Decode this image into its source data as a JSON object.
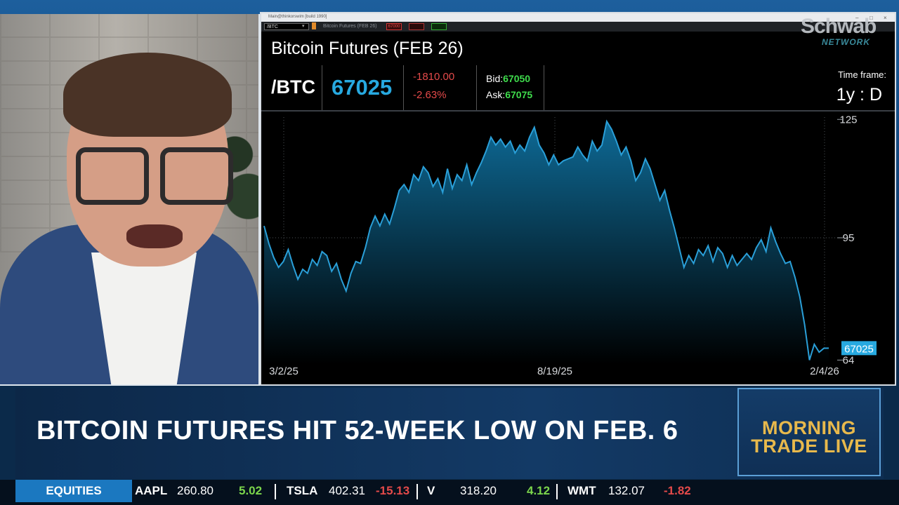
{
  "platform": {
    "window_title": "Main@thinkorswim [build 1990]",
    "toolbar_symbol": "/BTC",
    "toolbar_name": "Bitcoin Futures (FEB 26)",
    "badges": [
      "67000",
      "",
      ""
    ]
  },
  "branding": {
    "logo_text": "Schwab",
    "logo_sub": "NETWORK"
  },
  "quote": {
    "symbol": "/BTC",
    "last": "67025",
    "net_change": "-1810.00",
    "pct_change": "-2.63%",
    "bid_label": "Bid:",
    "bid": "67050",
    "ask_label": "Ask:",
    "ask": "67075",
    "timeframe_label": "Time frame:",
    "timeframe_value": "1y : D"
  },
  "chart_data": {
    "type": "area",
    "title": "Bitcoin Futures (FEB 26)",
    "xlabel": "",
    "ylabel": "",
    "x_ticks": [
      "3/2/25",
      "8/19/25",
      "2/4/26"
    ],
    "y_ticks": [
      125,
      95,
      64
    ],
    "ylim": [
      63,
      127
    ],
    "grid": true,
    "last_value_label": "67025",
    "colors": {
      "line": "#2a9fd8",
      "fill_top": "#0e5e86",
      "fill_bottom": "#000000",
      "last_tag": "#27a9e0"
    },
    "series": [
      {
        "values": [
          98.0,
          93.5,
          90.0,
          87.5,
          89.0,
          92.0,
          88.0,
          84.5,
          87.0,
          86.0,
          89.5,
          88.0,
          91.5,
          90.5,
          86.5,
          88.5,
          84.5,
          81.5,
          86.0,
          89.0,
          88.5,
          92.5,
          97.5,
          100.5,
          98.0,
          101.0,
          98.5,
          102.5,
          107.0,
          108.5,
          106.5,
          111.0,
          109.5,
          113.0,
          111.5,
          108.0,
          110.0,
          106.5,
          112.5,
          107.5,
          111.0,
          109.5,
          113.5,
          108.5,
          111.5,
          114.0,
          117.0,
          120.5,
          118.5,
          120.0,
          118.0,
          119.5,
          116.5,
          118.5,
          117.0,
          120.5,
          123.0,
          118.5,
          116.5,
          113.5,
          116.0,
          113.5,
          114.5,
          115.0,
          115.5,
          118.0,
          116.0,
          114.5,
          119.5,
          117.0,
          118.5,
          124.5,
          122.5,
          119.5,
          116.0,
          118.0,
          114.5,
          109.5,
          111.5,
          115.0,
          112.5,
          108.5,
          104.5,
          107.0,
          102.0,
          97.5,
          92.5,
          87.5,
          90.5,
          88.5,
          92.0,
          90.5,
          93.0,
          89.0,
          92.5,
          91.0,
          87.5,
          90.5,
          88.0,
          89.5,
          91.0,
          89.5,
          92.5,
          94.5,
          91.5,
          97.5,
          94.0,
          91.0,
          88.5,
          89.0,
          85.0,
          80.0,
          73.0,
          64.0,
          68.0,
          66.0,
          67.0,
          67.025
        ]
      }
    ]
  },
  "lower_third": {
    "headline": "BITCOIN FUTURES HIT 52-WEEK LOW ON FEB. 6",
    "show_line1": "MORNING",
    "show_line2": "TRADE LIVE"
  },
  "ticker": {
    "section": "EQUITIES",
    "items": [
      {
        "symbol": "AAPL",
        "price": "260.80",
        "change": "5.02",
        "dir": "up"
      },
      {
        "symbol": "TSLA",
        "price": "402.31",
        "change": "-15.13",
        "dir": "down"
      },
      {
        "symbol": "V",
        "price": "318.20",
        "change": "4.12",
        "dir": "up"
      },
      {
        "symbol": "WMT",
        "price": "132.07",
        "change": "-1.82",
        "dir": "down"
      }
    ]
  }
}
